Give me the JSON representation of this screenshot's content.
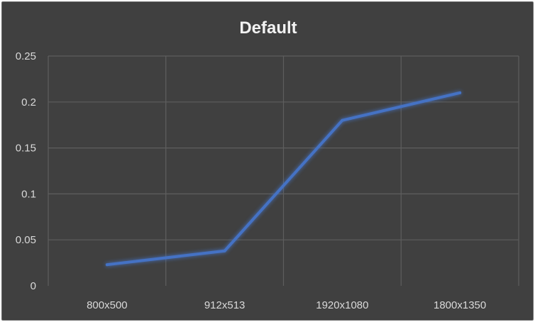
{
  "chart_data": {
    "type": "line",
    "title": "Default",
    "xlabel": "",
    "ylabel": "",
    "categories": [
      "800x500",
      "912x513",
      "1920x1080",
      "1800x1350"
    ],
    "series": [
      {
        "values": [
          0.023,
          0.038,
          0.18,
          0.21
        ]
      }
    ],
    "ylim": [
      0,
      0.25
    ],
    "y_ticks": [
      "0",
      "0.05",
      "0.1",
      "0.15",
      "0.2",
      "0.25"
    ],
    "grid": true,
    "legend": "none",
    "colors": {
      "background": "#404040",
      "line": "#4472c4",
      "grid": "#5e5e5e",
      "text": "#d9d9d9",
      "title": "#f2f2f2"
    }
  }
}
